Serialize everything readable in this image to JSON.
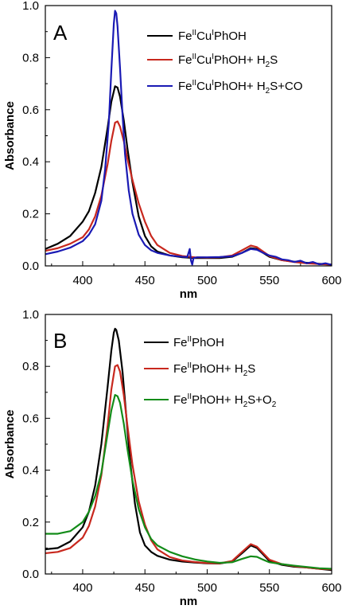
{
  "chart_data": [
    {
      "type": "line",
      "panel_label": "A",
      "xlabel": "nm",
      "ylabel": "Absorbance",
      "xlim": [
        370,
        600
      ],
      "ylim": [
        0,
        1.0
      ],
      "x_ticks": [
        400,
        450,
        500,
        550,
        600
      ],
      "y_ticks": [
        "0.0",
        "0.2",
        "0.4",
        "0.6",
        "0.8",
        "1.0"
      ],
      "grid": false,
      "legend_position": "top-right",
      "series": [
        {
          "name": "Fe^II Cu^I PhOH",
          "color": "#000000",
          "points": [
            [
              370,
              0.065
            ],
            [
              380,
              0.085
            ],
            [
              390,
              0.115
            ],
            [
              400,
              0.17
            ],
            [
              405,
              0.21
            ],
            [
              410,
              0.28
            ],
            [
              415,
              0.38
            ],
            [
              420,
              0.53
            ],
            [
              423,
              0.63
            ],
            [
              426,
              0.69
            ],
            [
              428,
              0.685
            ],
            [
              430,
              0.65
            ],
            [
              433,
              0.56
            ],
            [
              436,
              0.45
            ],
            [
              440,
              0.32
            ],
            [
              445,
              0.19
            ],
            [
              450,
              0.115
            ],
            [
              455,
              0.075
            ],
            [
              460,
              0.055
            ],
            [
              470,
              0.04
            ],
            [
              480,
              0.033
            ],
            [
              490,
              0.03
            ],
            [
              500,
              0.03
            ],
            [
              510,
              0.03
            ],
            [
              520,
              0.035
            ],
            [
              528,
              0.05
            ],
            [
              535,
              0.068
            ],
            [
              540,
              0.065
            ],
            [
              545,
              0.05
            ],
            [
              550,
              0.035
            ],
            [
              560,
              0.022
            ],
            [
              570,
              0.016
            ],
            [
              580,
              0.012
            ],
            [
              590,
              0.008
            ],
            [
              600,
              0.005
            ]
          ]
        },
        {
          "name": "Fe^II Cu^I PhOH+ H_2S",
          "color": "#c8281e",
          "points": [
            [
              370,
              0.058
            ],
            [
              380,
              0.068
            ],
            [
              390,
              0.085
            ],
            [
              400,
              0.11
            ],
            [
              405,
              0.14
            ],
            [
              410,
              0.19
            ],
            [
              415,
              0.27
            ],
            [
              420,
              0.39
            ],
            [
              423,
              0.48
            ],
            [
              426,
              0.55
            ],
            [
              428,
              0.555
            ],
            [
              430,
              0.535
            ],
            [
              433,
              0.48
            ],
            [
              436,
              0.41
            ],
            [
              440,
              0.33
            ],
            [
              445,
              0.24
            ],
            [
              450,
              0.17
            ],
            [
              455,
              0.115
            ],
            [
              460,
              0.08
            ],
            [
              470,
              0.05
            ],
            [
              480,
              0.038
            ],
            [
              490,
              0.033
            ],
            [
              500,
              0.032
            ],
            [
              510,
              0.033
            ],
            [
              520,
              0.04
            ],
            [
              528,
              0.06
            ],
            [
              535,
              0.078
            ],
            [
              540,
              0.072
            ],
            [
              545,
              0.055
            ],
            [
              550,
              0.038
            ],
            [
              560,
              0.022
            ],
            [
              570,
              0.015
            ],
            [
              580,
              0.01
            ],
            [
              590,
              0.007
            ],
            [
              600,
              0.005
            ]
          ]
        },
        {
          "name": "Fe^II Cu^I PhOH+ H_2S+CO",
          "color": "#1a1ab4",
          "points": [
            [
              370,
              0.045
            ],
            [
              380,
              0.055
            ],
            [
              390,
              0.07
            ],
            [
              400,
              0.095
            ],
            [
              405,
              0.12
            ],
            [
              410,
              0.16
            ],
            [
              415,
              0.25
            ],
            [
              418,
              0.37
            ],
            [
              421,
              0.55
            ],
            [
              423,
              0.75
            ],
            [
              425,
              0.93
            ],
            [
              426,
              0.98
            ],
            [
              427,
              0.97
            ],
            [
              428,
              0.92
            ],
            [
              430,
              0.76
            ],
            [
              432,
              0.58
            ],
            [
              434,
              0.43
            ],
            [
              437,
              0.29
            ],
            [
              440,
              0.2
            ],
            [
              445,
              0.12
            ],
            [
              450,
              0.08
            ],
            [
              455,
              0.06
            ],
            [
              460,
              0.05
            ],
            [
              470,
              0.04
            ],
            [
              480,
              0.035
            ],
            [
              484,
              0.034
            ],
            [
              486,
              0.065
            ],
            [
              487,
              0.02
            ],
            [
              488,
              0.005
            ],
            [
              489,
              0.03
            ],
            [
              492,
              0.033
            ],
            [
              500,
              0.033
            ],
            [
              510,
              0.034
            ],
            [
              520,
              0.037
            ],
            [
              528,
              0.05
            ],
            [
              535,
              0.065
            ],
            [
              540,
              0.062
            ],
            [
              545,
              0.05
            ],
            [
              550,
              0.04
            ],
            [
              555,
              0.035
            ],
            [
              560,
              0.025
            ],
            [
              565,
              0.022
            ],
            [
              570,
              0.015
            ],
            [
              575,
              0.02
            ],
            [
              580,
              0.01
            ],
            [
              585,
              0.015
            ],
            [
              590,
              0.006
            ],
            [
              595,
              0.01
            ],
            [
              600,
              0.004
            ]
          ]
        }
      ],
      "legend": [
        {
          "parts": [
            [
              "Fe",
              ""
            ],
            [
              "II",
              "sup"
            ],
            [
              "Cu",
              ""
            ],
            [
              "I",
              "sup"
            ],
            [
              "PhOH",
              ""
            ]
          ]
        },
        {
          "parts": [
            [
              "Fe",
              ""
            ],
            [
              "II",
              "sup"
            ],
            [
              "Cu",
              ""
            ],
            [
              "I",
              "sup"
            ],
            [
              "PhOH+ H",
              ""
            ],
            [
              "2",
              "sub"
            ],
            [
              "S",
              ""
            ]
          ]
        },
        {
          "parts": [
            [
              "Fe",
              ""
            ],
            [
              "II",
              "sup"
            ],
            [
              "Cu",
              ""
            ],
            [
              "I",
              "sup"
            ],
            [
              "PhOH+ H",
              ""
            ],
            [
              "2",
              "sub"
            ],
            [
              "S+CO",
              ""
            ]
          ]
        }
      ]
    },
    {
      "type": "line",
      "panel_label": "B",
      "xlabel": "nm",
      "ylabel": "Absorbance",
      "xlim": [
        370,
        600
      ],
      "ylim": [
        0,
        1.0
      ],
      "x_ticks": [
        400,
        450,
        500,
        550,
        600
      ],
      "y_ticks": [
        "0.0",
        "0.2",
        "0.4",
        "0.6",
        "0.8",
        "1.0"
      ],
      "grid": false,
      "legend_position": "top-right",
      "series": [
        {
          "name": "Fe^II PhOH",
          "color": "#000000",
          "points": [
            [
              370,
              0.095
            ],
            [
              380,
              0.1
            ],
            [
              390,
              0.125
            ],
            [
              400,
              0.18
            ],
            [
              405,
              0.24
            ],
            [
              410,
              0.34
            ],
            [
              415,
              0.5
            ],
            [
              420,
              0.72
            ],
            [
              423,
              0.86
            ],
            [
              425,
              0.93
            ],
            [
              426,
              0.945
            ],
            [
              427,
              0.94
            ],
            [
              429,
              0.9
            ],
            [
              432,
              0.78
            ],
            [
              435,
              0.61
            ],
            [
              438,
              0.44
            ],
            [
              442,
              0.27
            ],
            [
              446,
              0.16
            ],
            [
              450,
              0.11
            ],
            [
              455,
              0.085
            ],
            [
              460,
              0.07
            ],
            [
              470,
              0.055
            ],
            [
              480,
              0.048
            ],
            [
              490,
              0.044
            ],
            [
              500,
              0.041
            ],
            [
              510,
              0.04
            ],
            [
              520,
              0.048
            ],
            [
              528,
              0.08
            ],
            [
              535,
              0.11
            ],
            [
              540,
              0.1
            ],
            [
              545,
              0.075
            ],
            [
              550,
              0.05
            ],
            [
              560,
              0.035
            ],
            [
              570,
              0.028
            ],
            [
              580,
              0.025
            ],
            [
              590,
              0.02
            ],
            [
              600,
              0.015
            ]
          ]
        },
        {
          "name": "Fe^II PhOH+ H_2S",
          "color": "#c8281e",
          "points": [
            [
              370,
              0.08
            ],
            [
              380,
              0.085
            ],
            [
              390,
              0.1
            ],
            [
              400,
              0.14
            ],
            [
              405,
              0.185
            ],
            [
              410,
              0.26
            ],
            [
              415,
              0.38
            ],
            [
              420,
              0.57
            ],
            [
              423,
              0.71
            ],
            [
              426,
              0.8
            ],
            [
              428,
              0.805
            ],
            [
              430,
              0.78
            ],
            [
              433,
              0.69
            ],
            [
              436,
              0.57
            ],
            [
              440,
              0.42
            ],
            [
              445,
              0.28
            ],
            [
              450,
              0.19
            ],
            [
              455,
              0.13
            ],
            [
              460,
              0.095
            ],
            [
              470,
              0.065
            ],
            [
              480,
              0.052
            ],
            [
              490,
              0.046
            ],
            [
              500,
              0.042
            ],
            [
              510,
              0.041
            ],
            [
              520,
              0.05
            ],
            [
              528,
              0.085
            ],
            [
              535,
              0.115
            ],
            [
              540,
              0.105
            ],
            [
              545,
              0.08
            ],
            [
              550,
              0.055
            ],
            [
              560,
              0.038
            ],
            [
              570,
              0.03
            ],
            [
              580,
              0.025
            ],
            [
              590,
              0.02
            ],
            [
              600,
              0.018
            ]
          ]
        },
        {
          "name": "Fe^II PhOH+ H_2S+O_2",
          "color": "#138c19",
          "points": [
            [
              370,
              0.155
            ],
            [
              380,
              0.155
            ],
            [
              390,
              0.165
            ],
            [
              400,
              0.2
            ],
            [
              405,
              0.24
            ],
            [
              410,
              0.3
            ],
            [
              415,
              0.39
            ],
            [
              420,
              0.54
            ],
            [
              423,
              0.63
            ],
            [
              426,
              0.69
            ],
            [
              428,
              0.685
            ],
            [
              430,
              0.66
            ],
            [
              433,
              0.58
            ],
            [
              436,
              0.48
            ],
            [
              440,
              0.36
            ],
            [
              445,
              0.25
            ],
            [
              450,
              0.18
            ],
            [
              455,
              0.135
            ],
            [
              460,
              0.11
            ],
            [
              470,
              0.085
            ],
            [
              480,
              0.068
            ],
            [
              490,
              0.056
            ],
            [
              500,
              0.048
            ],
            [
              510,
              0.043
            ],
            [
              520,
              0.045
            ],
            [
              528,
              0.058
            ],
            [
              535,
              0.068
            ],
            [
              540,
              0.066
            ],
            [
              545,
              0.055
            ],
            [
              550,
              0.045
            ],
            [
              560,
              0.038
            ],
            [
              570,
              0.032
            ],
            [
              580,
              0.027
            ],
            [
              590,
              0.022
            ],
            [
              600,
              0.02
            ]
          ]
        }
      ],
      "legend": [
        {
          "parts": [
            [
              "Fe",
              ""
            ],
            [
              "II",
              "sup"
            ],
            [
              "PhOH",
              ""
            ]
          ]
        },
        {
          "parts": [
            [
              "Fe",
              ""
            ],
            [
              "II",
              "sup"
            ],
            [
              "PhOH+ H",
              ""
            ],
            [
              "2",
              "sub"
            ],
            [
              "S",
              ""
            ]
          ]
        },
        {
          "parts": [
            [
              "Fe",
              ""
            ],
            [
              "II",
              "sup"
            ],
            [
              "PhOH+ H",
              ""
            ],
            [
              "2",
              "sub"
            ],
            [
              "S+O",
              ""
            ],
            [
              "2",
              "sub"
            ]
          ]
        }
      ]
    }
  ]
}
